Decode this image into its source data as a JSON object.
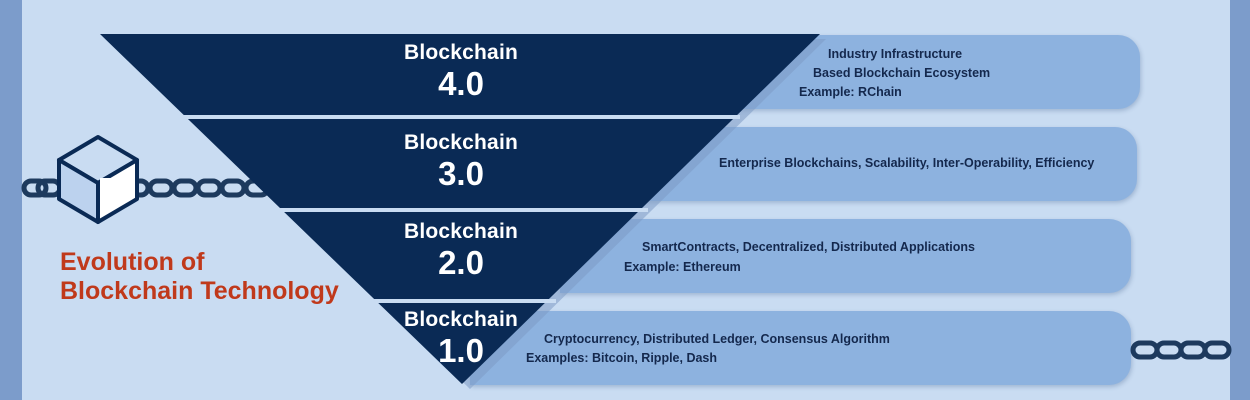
{
  "title": {
    "line1": "Evolution of",
    "line2": "Blockchain Technology"
  },
  "levels": [
    {
      "name": "Blockchain",
      "version": "4.0",
      "desc_lines": [
        "Industry Infrastructure",
        "Based Blockchain Ecosystem",
        "Example: RChain"
      ]
    },
    {
      "name": "Blockchain",
      "version": "3.0",
      "desc_lines": [
        "Enterprise Blockchains, Scalability, Inter-Operability, Efficiency"
      ]
    },
    {
      "name": "Blockchain",
      "version": "2.0",
      "desc_lines": [
        "SmartContracts, Decentralized, Distributed Applications",
        "Example: Ethereum"
      ]
    },
    {
      "name": "Blockchain",
      "version": "1.0",
      "desc_lines": [
        "Cryptocurrency, Distributed Ledger, Consensus Algorithm",
        "Examples: Bitcoin, Ripple, Dash"
      ]
    }
  ],
  "colors": {
    "background": "#c9dcf2",
    "triangle": "#0a2a55",
    "pill": "#8db2df",
    "title": "#c0391b",
    "chain": "#1d3a5e"
  },
  "icons": {
    "block": "cube-icon",
    "chain": "chain-icon"
  }
}
